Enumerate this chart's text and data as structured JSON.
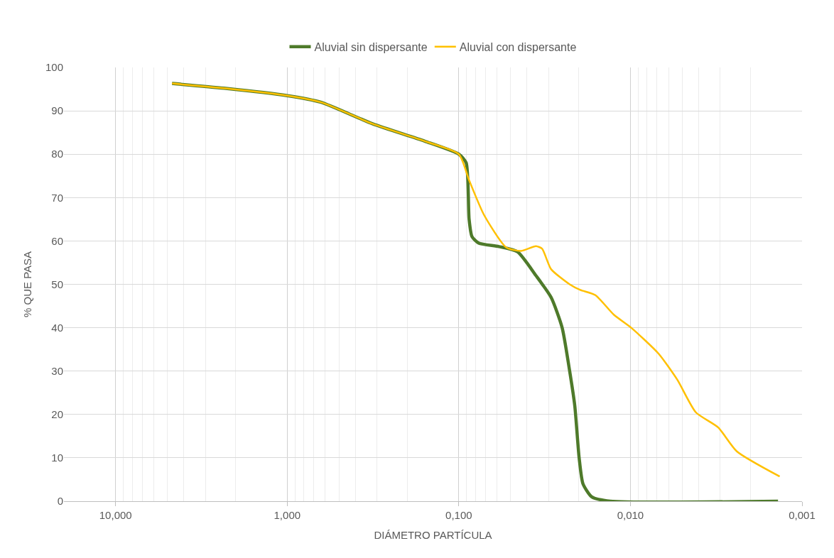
{
  "chart_data": {
    "type": "line",
    "xlabel": "DIÁMETRO PARTÍCULA",
    "ylabel": "% QUE PASA",
    "log": "x",
    "grid": true,
    "legend": "top",
    "line_style": "solid",
    "marker": "none",
    "xlim": [
      20,
      0.001
    ],
    "xticks": [
      {
        "value": 10,
        "label": "10,000"
      },
      {
        "value": 1,
        "label": "1,000"
      },
      {
        "value": 0.1,
        "label": "0,100"
      },
      {
        "value": 0.01,
        "label": "0,010"
      },
      {
        "value": 0.001,
        "label": "0,001"
      }
    ],
    "ylim": [
      0,
      100
    ],
    "yticks": [
      0,
      10,
      20,
      30,
      40,
      50,
      60,
      70,
      80,
      90,
      100
    ],
    "series": [
      {
        "name": "Aluvial sin dispersante",
        "color": "#4e7a2a",
        "x": [
          4.69,
          2.33,
          1,
          0.638,
          0.318,
          0.158,
          0.1,
          0.0906,
          0.0871,
          0.0838,
          0.0765,
          0.0583,
          0.0455,
          0.0355,
          0.029,
          0.025,
          0.0226,
          0.0211,
          0.0199,
          0.0189,
          0.0168,
          0.0131,
          0.00138
        ],
        "values": [
          96.3,
          95.2,
          93.5,
          92,
          87,
          83,
          80,
          78,
          65,
          61,
          59.5,
          58.7,
          57.5,
          52,
          47,
          40,
          30,
          22,
          10,
          4,
          1,
          0,
          0
        ]
      },
      {
        "name": "Aluvial con dispersante",
        "color": "#ffc000",
        "x": [
          4.69,
          2.33,
          1,
          0.638,
          0.318,
          0.158,
          0.1,
          0.0871,
          0.0713,
          0.0529,
          0.0433,
          0.0355,
          0.0327,
          0.029,
          0.0226,
          0.0196,
          0.016,
          0.0125,
          0.0099,
          0.00685,
          0.00533,
          0.00416,
          0.00308,
          0.0024,
          0.00135
        ],
        "values": [
          96.3,
          95.2,
          93.5,
          92,
          87,
          83,
          80,
          74,
          66,
          58.5,
          57.7,
          58.8,
          58.2,
          53.5,
          50,
          48.7,
          47.5,
          43,
          40,
          34,
          28,
          20.5,
          17,
          11.5,
          5.7
        ]
      }
    ]
  }
}
